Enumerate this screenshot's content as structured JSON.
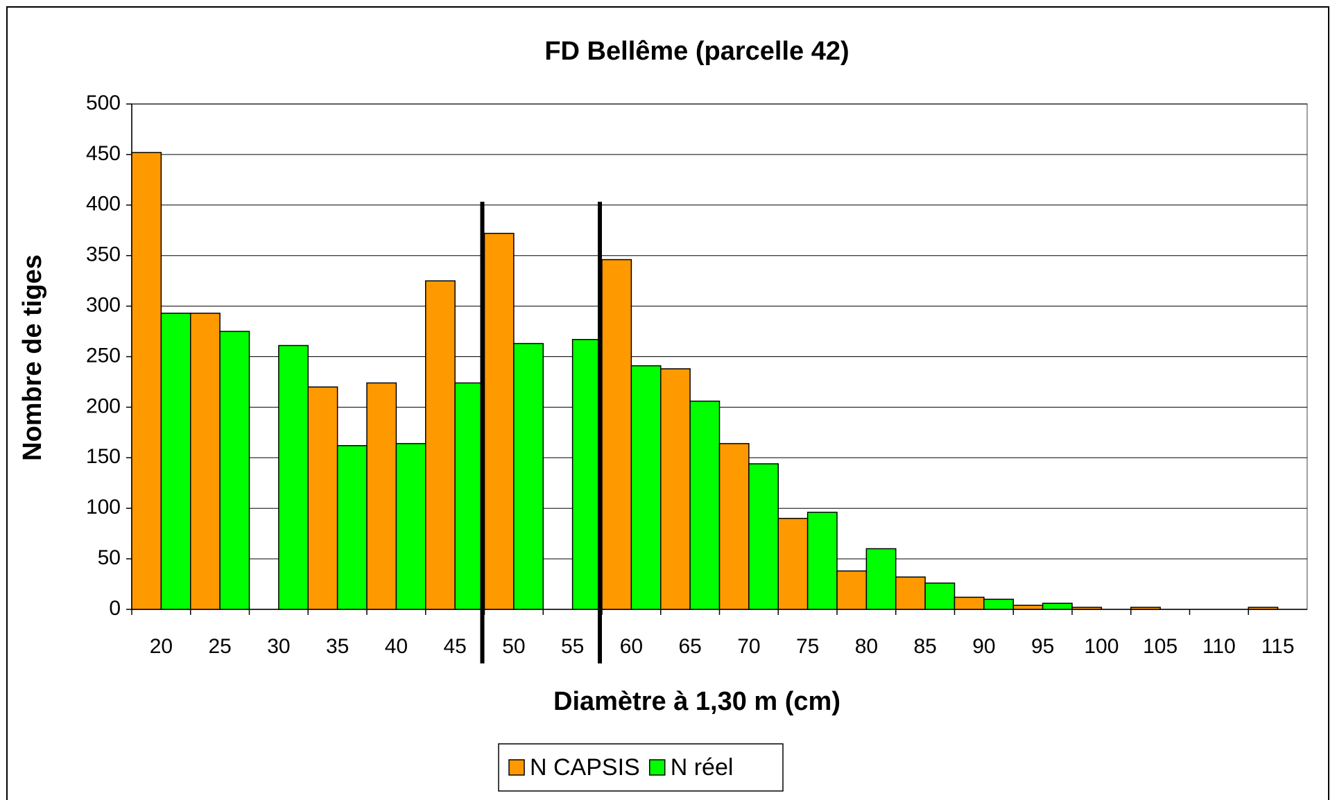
{
  "chart_data": {
    "type": "bar",
    "title": "FD Bellême (parcelle 42)",
    "x_label": "Diamètre à 1,30 m (cm)",
    "y_label": "Nombre de tiges",
    "categories": [
      "20",
      "25",
      "30",
      "35",
      "40",
      "45",
      "50",
      "55",
      "60",
      "65",
      "70",
      "75",
      "80",
      "85",
      "90",
      "95",
      "100",
      "105",
      "110",
      "115"
    ],
    "series": [
      {
        "name": "N CAPSIS",
        "color": "#ff9900",
        "values": [
          452,
          293,
          0,
          220,
          224,
          325,
          372,
          0,
          346,
          238,
          164,
          90,
          38,
          32,
          12,
          4,
          2,
          2,
          0,
          2
        ]
      },
      {
        "name": "N réel",
        "color": "#00ff00",
        "values": [
          293,
          275,
          261,
          162,
          164,
          224,
          263,
          267,
          241,
          206,
          144,
          96,
          60,
          26,
          10,
          6,
          0,
          0,
          0,
          0
        ]
      }
    ],
    "ylim": [
      0,
      500
    ],
    "yticks": [
      0,
      50,
      100,
      150,
      200,
      250,
      300,
      350,
      400,
      450,
      500
    ],
    "grid": true,
    "legend": "bottom"
  }
}
